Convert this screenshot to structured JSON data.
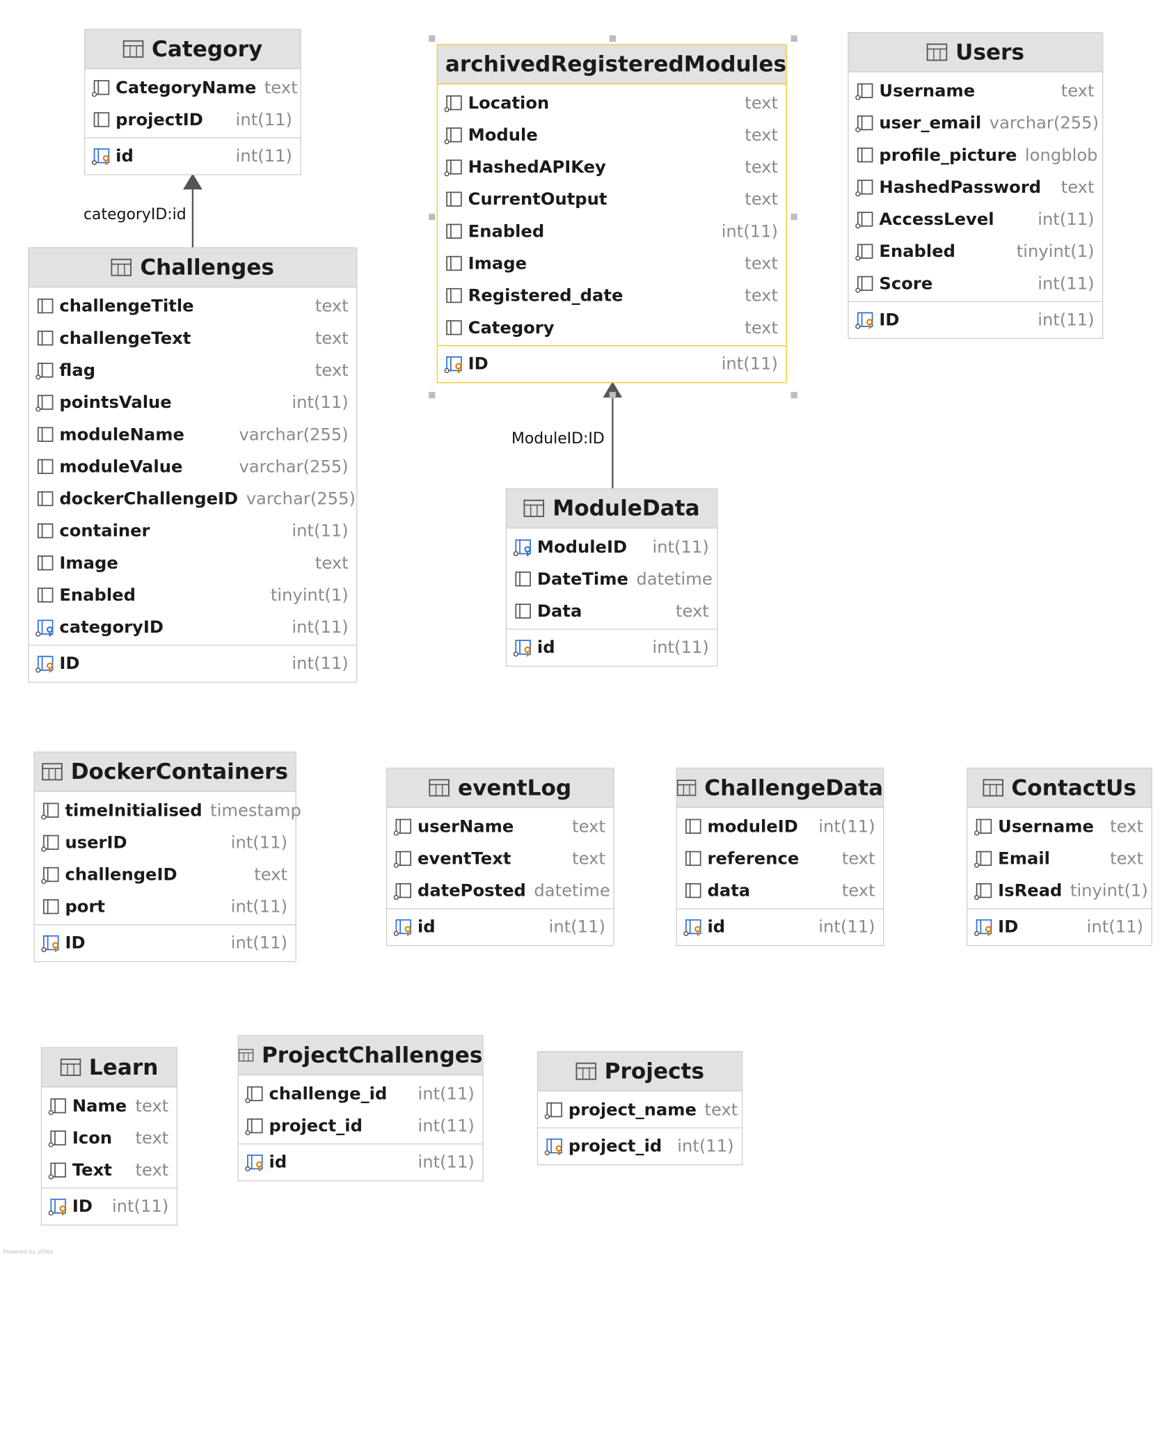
{
  "tables": [
    {
      "key": "category",
      "title": "Category",
      "columns": [
        {
          "name": "CategoryName",
          "type": "text",
          "icon": "column-nullable-icon"
        },
        {
          "name": "projectID",
          "type": "int(11)",
          "icon": "column-icon"
        },
        {
          "name": "id",
          "type": "int(11)",
          "icon": "primary-key-icon",
          "pk": true
        }
      ]
    },
    {
      "key": "archived",
      "title": "archivedRegisteredModules",
      "selected": true,
      "columns": [
        {
          "name": "Location",
          "type": "text",
          "icon": "column-nullable-icon"
        },
        {
          "name": "Module",
          "type": "text",
          "icon": "column-nullable-icon"
        },
        {
          "name": "HashedAPIKey",
          "type": "text",
          "icon": "column-nullable-icon"
        },
        {
          "name": "CurrentOutput",
          "type": "text",
          "icon": "column-icon"
        },
        {
          "name": "Enabled",
          "type": "int(11)",
          "icon": "column-icon"
        },
        {
          "name": "Image",
          "type": "text",
          "icon": "column-icon"
        },
        {
          "name": "Registered_date",
          "type": "text",
          "icon": "column-icon"
        },
        {
          "name": "Category",
          "type": "text",
          "icon": "column-icon"
        },
        {
          "name": "ID",
          "type": "int(11)",
          "icon": "primary-key-icon",
          "pk": true
        }
      ]
    },
    {
      "key": "users",
      "title": "Users",
      "columns": [
        {
          "name": "Username",
          "type": "text",
          "icon": "column-nullable-icon"
        },
        {
          "name": "user_email",
          "type": "varchar(255)",
          "icon": "column-nullable-icon"
        },
        {
          "name": "profile_picture",
          "type": "longblob",
          "icon": "column-icon"
        },
        {
          "name": "HashedPassword",
          "type": "text",
          "icon": "column-nullable-icon"
        },
        {
          "name": "AccessLevel",
          "type": "int(11)",
          "icon": "column-nullable-icon"
        },
        {
          "name": "Enabled",
          "type": "tinyint(1)",
          "icon": "column-nullable-icon"
        },
        {
          "name": "Score",
          "type": "int(11)",
          "icon": "column-nullable-icon"
        },
        {
          "name": "ID",
          "type": "int(11)",
          "icon": "primary-key-icon",
          "pk": true
        }
      ]
    },
    {
      "key": "challenges",
      "title": "Challenges",
      "columns": [
        {
          "name": "challengeTitle",
          "type": "text",
          "icon": "column-icon"
        },
        {
          "name": "challengeText",
          "type": "text",
          "icon": "column-icon"
        },
        {
          "name": "flag",
          "type": "text",
          "icon": "column-nullable-icon"
        },
        {
          "name": "pointsValue",
          "type": "int(11)",
          "icon": "column-nullable-icon"
        },
        {
          "name": "moduleName",
          "type": "varchar(255)",
          "icon": "column-icon"
        },
        {
          "name": "moduleValue",
          "type": "varchar(255)",
          "icon": "column-icon"
        },
        {
          "name": "dockerChallengeID",
          "type": "varchar(255)",
          "icon": "column-icon"
        },
        {
          "name": "container",
          "type": "int(11)",
          "icon": "column-icon"
        },
        {
          "name": "Image",
          "type": "text",
          "icon": "column-icon"
        },
        {
          "name": "Enabled",
          "type": "tinyint(1)",
          "icon": "column-icon"
        },
        {
          "name": "categoryID",
          "type": "int(11)",
          "icon": "foreign-key-icon"
        },
        {
          "name": "ID",
          "type": "int(11)",
          "icon": "primary-key-icon",
          "pk": true
        }
      ]
    },
    {
      "key": "moduledata",
      "title": "ModuleData",
      "columns": [
        {
          "name": "ModuleID",
          "type": "int(11)",
          "icon": "foreign-key-icon"
        },
        {
          "name": "DateTime",
          "type": "datetime",
          "icon": "column-icon"
        },
        {
          "name": "Data",
          "type": "text",
          "icon": "column-icon"
        },
        {
          "name": "id",
          "type": "int(11)",
          "icon": "primary-key-icon",
          "pk": true
        }
      ]
    },
    {
      "key": "docker",
      "title": "DockerContainers",
      "columns": [
        {
          "name": "timeInitialised",
          "type": "timestamp",
          "icon": "column-nullable-icon"
        },
        {
          "name": "userID",
          "type": "int(11)",
          "icon": "column-nullable-icon"
        },
        {
          "name": "challengeID",
          "type": "text",
          "icon": "column-nullable-icon"
        },
        {
          "name": "port",
          "type": "int(11)",
          "icon": "column-icon"
        },
        {
          "name": "ID",
          "type": "int(11)",
          "icon": "primary-key-icon",
          "pk": true
        }
      ]
    },
    {
      "key": "eventlog",
      "title": "eventLog",
      "columns": [
        {
          "name": "userName",
          "type": "text",
          "icon": "column-nullable-icon"
        },
        {
          "name": "eventText",
          "type": "text",
          "icon": "column-nullable-icon"
        },
        {
          "name": "datePosted",
          "type": "datetime",
          "icon": "column-nullable-icon"
        },
        {
          "name": "id",
          "type": "int(11)",
          "icon": "primary-key-icon",
          "pk": true
        }
      ]
    },
    {
      "key": "challengedata",
      "title": "ChallengeData",
      "columns": [
        {
          "name": "moduleID",
          "type": "int(11)",
          "icon": "column-icon"
        },
        {
          "name": "reference",
          "type": "text",
          "icon": "column-icon"
        },
        {
          "name": "data",
          "type": "text",
          "icon": "column-icon"
        },
        {
          "name": "id",
          "type": "int(11)",
          "icon": "primary-key-icon",
          "pk": true
        }
      ]
    },
    {
      "key": "contactus",
      "title": "ContactUs",
      "columns": [
        {
          "name": "Username",
          "type": "text",
          "icon": "column-nullable-icon"
        },
        {
          "name": "Email",
          "type": "text",
          "icon": "column-nullable-icon"
        },
        {
          "name": "IsRead",
          "type": "tinyint(1)",
          "icon": "column-nullable-icon"
        },
        {
          "name": "ID",
          "type": "int(11)",
          "icon": "primary-key-icon",
          "pk": true
        }
      ]
    },
    {
      "key": "learn",
      "title": "Learn",
      "columns": [
        {
          "name": "Name",
          "type": "text",
          "icon": "column-nullable-icon"
        },
        {
          "name": "Icon",
          "type": "text",
          "icon": "column-nullable-icon"
        },
        {
          "name": "Text",
          "type": "text",
          "icon": "column-nullable-icon"
        },
        {
          "name": "ID",
          "type": "int(11)",
          "icon": "primary-key-icon",
          "pk": true
        }
      ]
    },
    {
      "key": "projectchallenges",
      "title": "ProjectChallenges",
      "columns": [
        {
          "name": "challenge_id",
          "type": "int(11)",
          "icon": "column-nullable-icon"
        },
        {
          "name": "project_id",
          "type": "int(11)",
          "icon": "column-nullable-icon"
        },
        {
          "name": "id",
          "type": "int(11)",
          "icon": "primary-key-icon",
          "pk": true
        }
      ]
    },
    {
      "key": "projects",
      "title": "Projects",
      "columns": [
        {
          "name": "project_name",
          "type": "text",
          "icon": "column-nullable-icon"
        },
        {
          "name": "project_id",
          "type": "int(11)",
          "icon": "primary-key-icon",
          "pk": true
        }
      ]
    }
  ],
  "relations": [
    {
      "from": "challenges",
      "to": "category",
      "label": "categoryID:id"
    },
    {
      "from": "moduledata",
      "to": "archived",
      "label": "ModuleID:ID"
    }
  ],
  "colors": {
    "header_bg": "#e2e2e2",
    "border": "#c8c8c8",
    "selected_border": "#f2c200",
    "type_text": "#8a8a8a",
    "pk_key": "#e07b00",
    "fk_key": "#2f6fd6"
  },
  "watermark": "Powered by yFiles"
}
